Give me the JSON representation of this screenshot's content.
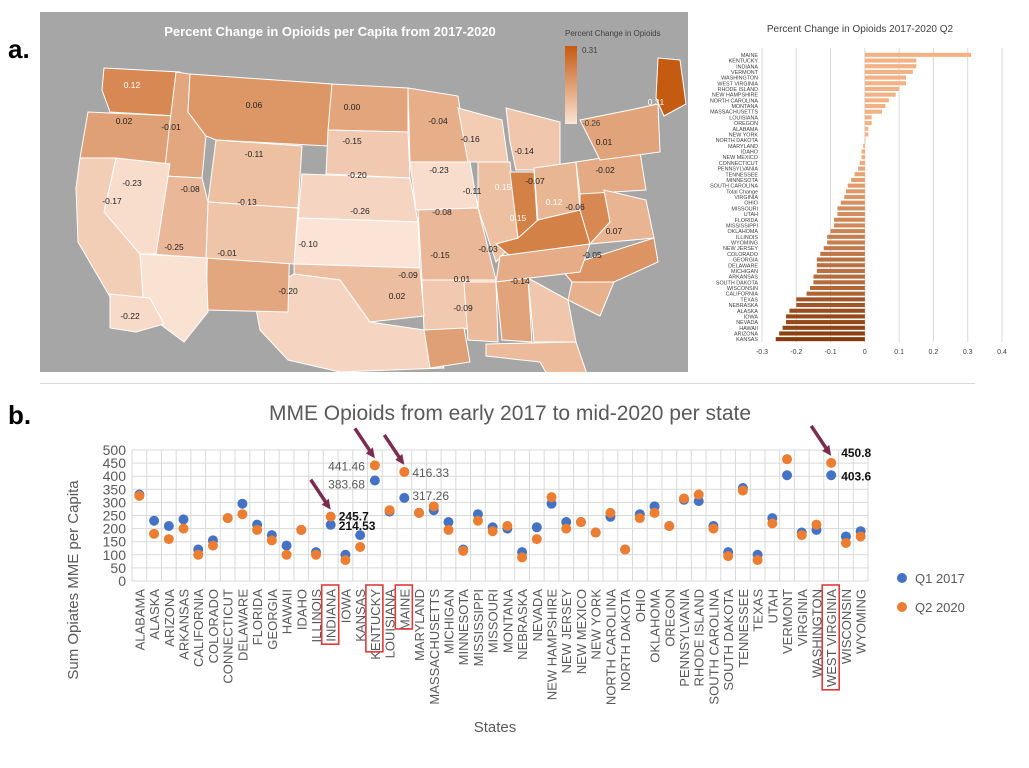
{
  "panel_labels": {
    "a": "a.",
    "b": "b."
  },
  "colors": {
    "map_bg": "#a6a6a6",
    "low": "#fbe4d6",
    "high": "#c55a11",
    "bar_positive": "#f4b183",
    "bar_negative": "#8a3a0a",
    "q1": "#4472c4",
    "q2": "#ed7d31",
    "arrow": "#7b2c4f",
    "highlight_box": "#e03a3a",
    "grid": "#d9d9d9"
  },
  "chart_data": [
    {
      "type": "heatmap",
      "title": "Percent Change in Opioids per Capita from 2017-2020",
      "legend": {
        "title": "Percent Change in Opioids",
        "max_label": "0.31",
        "min_label": "-0.26",
        "min": -0.26,
        "max": 0.31
      },
      "labels": [
        {
          "state": "WASHINGTON",
          "value": 0.12,
          "text": "0.12"
        },
        {
          "state": "OREGON",
          "value": 0.02,
          "text": "0.02"
        },
        {
          "state": "IDAHO",
          "value": -0.01,
          "text": "-0.01"
        },
        {
          "state": "MONTANA",
          "value": 0.06,
          "text": "0.06"
        },
        {
          "state": "NORTH DAKOTA",
          "value": 0.0,
          "text": "0.00"
        },
        {
          "state": "MINNESOTA",
          "value": -0.04,
          "text": "-0.04"
        },
        {
          "state": "WISCONSIN",
          "value": -0.16,
          "text": "-0.16"
        },
        {
          "state": "MICHIGAN",
          "value": -0.14,
          "text": "-0.14"
        },
        {
          "state": "NEW YORK",
          "value": 0.01,
          "text": "0.01"
        },
        {
          "state": "MAINE",
          "value": 0.31,
          "text": "0.31"
        },
        {
          "state": "SOUTH DAKOTA",
          "value": -0.15,
          "text": "-0.15"
        },
        {
          "state": "WYOMING",
          "value": -0.11,
          "text": "-0.11"
        },
        {
          "state": "IOWA",
          "value": -0.23,
          "text": "-0.23"
        },
        {
          "state": "NEBRASKA",
          "value": -0.2,
          "text": "-0.20"
        },
        {
          "state": "NEVADA",
          "value": -0.23,
          "text": "-0.23"
        },
        {
          "state": "UTAH",
          "value": -0.08,
          "text": "-0.08"
        },
        {
          "state": "COLORADO",
          "value": -0.13,
          "text": "-0.13"
        },
        {
          "state": "KANSAS",
          "value": -0.26,
          "text": "-0.26"
        },
        {
          "state": "MISSOURI",
          "value": -0.08,
          "text": "-0.08"
        },
        {
          "state": "ILLINOIS",
          "value": -0.11,
          "text": "-0.11"
        },
        {
          "state": "INDIANA",
          "value": 0.15,
          "text": "0.15"
        },
        {
          "state": "OHIO",
          "value": -0.07,
          "text": "-0.07"
        },
        {
          "state": "PENNSYLVANIA",
          "value": -0.02,
          "text": "-0.02"
        },
        {
          "state": "WEST VIRGINIA",
          "value": 0.12,
          "text": "0.12"
        },
        {
          "state": "KENTUCKY",
          "value": 0.15,
          "text": "0.15"
        },
        {
          "state": "VIRGINIA",
          "value": -0.06,
          "text": "-0.06"
        },
        {
          "state": "CALIFORNIA",
          "value": -0.17,
          "text": "-0.17"
        },
        {
          "state": "ARIZONA",
          "value": -0.25,
          "text": "-0.25"
        },
        {
          "state": "NEW MEXICO",
          "value": -0.01,
          "text": "-0.01"
        },
        {
          "state": "OKLAHOMA",
          "value": -0.1,
          "text": "-0.10"
        },
        {
          "state": "ARKANSAS",
          "value": -0.15,
          "text": "-0.15"
        },
        {
          "state": "TENNESSEE",
          "value": -0.03,
          "text": "-0.03"
        },
        {
          "state": "NORTH CAROLINA",
          "value": 0.07,
          "text": "0.07"
        },
        {
          "state": "SOUTH CAROLINA",
          "value": -0.05,
          "text": "-0.05"
        },
        {
          "state": "TEXAS",
          "value": -0.2,
          "text": "-0.20"
        },
        {
          "state": "LOUISIANA",
          "value": 0.02,
          "text": "0.02"
        },
        {
          "state": "MISSISSIPPI",
          "value": -0.09,
          "text": "-0.09"
        },
        {
          "state": "ALABAMA",
          "value": 0.01,
          "text": "0.01"
        },
        {
          "state": "GEORGIA",
          "value": -0.14,
          "text": "-0.14"
        },
        {
          "state": "FLORIDA",
          "value": -0.09,
          "text": "-0.09"
        },
        {
          "state": "ALASKA",
          "value": -0.22,
          "text": "-0.22"
        }
      ]
    },
    {
      "type": "bar",
      "orientation": "horizontal",
      "title": "Percent Change in Opioids 2017-2020 Q2",
      "categories": [
        "MAINE",
        "KENTUCKY",
        "INDIANA",
        "VERMONT",
        "WASHINGTON",
        "WEST VIRGINIA",
        "RHODE ISLAND",
        "NEW HAMPSHIRE",
        "NORTH CAROLINA",
        "MONTANA",
        "MASSACHUSETTS",
        "LOUISIANA",
        "OREGON",
        "ALABAMA",
        "NEW YORK",
        "NORTH DAKOTA",
        "MARYLAND",
        "IDAHO",
        "NEW MEXICO",
        "CONNECTICUT",
        "PENNSYLVANIA",
        "TENNESSEE",
        "MINNESOTA",
        "SOUTH CAROLINA",
        "Total Change",
        "VIRGINIA",
        "OHIO",
        "MISSOURI",
        "UTAH",
        "FLORIDA",
        "MISSISSIPPI",
        "OKLAHOMA",
        "ILLINOIS",
        "WYOMING",
        "NEW JERSEY",
        "COLORADO",
        "GEORGIA",
        "DELAWARE",
        "MICHIGAN",
        "ARKANSAS",
        "SOUTH DAKOTA",
        "WISCONSIN",
        "CALIFORNIA",
        "TEXAS",
        "NEBRASKA",
        "ALASKA",
        "IOWA",
        "NEVADA",
        "HAWAII",
        "ARIZONA",
        "KANSAS"
      ],
      "values": [
        0.31,
        0.15,
        0.15,
        0.14,
        0.12,
        0.12,
        0.1,
        0.09,
        0.07,
        0.06,
        0.05,
        0.02,
        0.02,
        0.01,
        0.01,
        0.0,
        -0.005,
        -0.01,
        -0.01,
        -0.015,
        -0.02,
        -0.03,
        -0.04,
        -0.05,
        -0.055,
        -0.06,
        -0.07,
        -0.08,
        -0.08,
        -0.09,
        -0.09,
        -0.1,
        -0.11,
        -0.11,
        -0.12,
        -0.13,
        -0.14,
        -0.14,
        -0.14,
        -0.15,
        -0.15,
        -0.16,
        -0.17,
        -0.2,
        -0.2,
        -0.22,
        -0.23,
        -0.23,
        -0.24,
        -0.25,
        -0.26
      ],
      "xlim": [
        -0.3,
        0.4
      ],
      "xticks": [
        "-0.3",
        "-0.2",
        "-0.1",
        "0",
        "0.1",
        "0.2",
        "0.3",
        "0.4"
      ]
    },
    {
      "type": "scatter",
      "title": "MME Opioids from early 2017 to mid-2020 per state",
      "xlabel": "States",
      "ylabel": "Sum Opiates MME per Capita",
      "ylim": [
        0,
        500
      ],
      "yticks": [
        "0",
        "50",
        "100",
        "150",
        "200",
        "250",
        "300",
        "350",
        "400",
        "450",
        "500"
      ],
      "categories": [
        "ALABAMA",
        "ALASKA",
        "ARIZONA",
        "ARKANSAS",
        "CALIFORNIA",
        "COLORADO",
        "CONNECTICUT",
        "DELAWARE",
        "FLORIDA",
        "GEORGIA",
        "HAWAII",
        "IDAHO",
        "ILLINOIS",
        "INDIANA",
        "IOWA",
        "KANSAS",
        "KENTUCKY",
        "LOUISIANA",
        "MAINE",
        "MARYLAND",
        "MASSACHUSETTS",
        "MICHIGAN",
        "MINNESOTA",
        "MISSISSIPPI",
        "MISSOURI",
        "MONTANA",
        "NEBRASKA",
        "NEVADA",
        "NEW HAMPSHIRE",
        "NEW JERSEY",
        "NEW MEXICO",
        "NEW YORK",
        "NORTH CAROLINA",
        "NORTH DAKOTA",
        "OHIO",
        "OKLAHOMA",
        "OREGON",
        "PENNSYLVANIA",
        "RHODE ISLAND",
        "SOUTH CAROLINA",
        "SOUTH DAKOTA",
        "TENNESSEE",
        "TEXAS",
        "UTAH",
        "VERMONT",
        "VIRGINIA",
        "WASHINGTON",
        "WEST VIRGINIA",
        "WISCONSIN",
        "WYOMING"
      ],
      "series": [
        {
          "name": "Q1 2017",
          "values": [
            330,
            230,
            210,
            235,
            120,
            155,
            240,
            295,
            215,
            175,
            135,
            195,
            110,
            214.53,
            100,
            175,
            383.68,
            265,
            317.26,
            260,
            270,
            225,
            120,
            255,
            205,
            200,
            110,
            205,
            295,
            225,
            225,
            185,
            245,
            120,
            255,
            285,
            210,
            310,
            305,
            210,
            110,
            355,
            100,
            240,
            403.6,
            185,
            195,
            403.6,
            170,
            190
          ]
        },
        {
          "name": "Q2 2020",
          "values": [
            325,
            180,
            160,
            200,
            100,
            135,
            240,
            255,
            195,
            155,
            100,
            195,
            100,
            245.7,
            80,
            130,
            441.46,
            270,
            416.33,
            260,
            285,
            195,
            115,
            230,
            190,
            210,
            90,
            160,
            320,
            200,
            225,
            185,
            260,
            120,
            240,
            260,
            210,
            315,
            330,
            200,
            95,
            345,
            80,
            220,
            465,
            175,
            215,
            450.8,
            145,
            170
          ]
        }
      ],
      "highlighted_states": [
        "INDIANA",
        "KENTUCKY",
        "MAINE",
        "WEST VIRGINIA"
      ],
      "annotations": [
        "441.46",
        "416.33",
        "383.68",
        "317.26",
        "245.7",
        "214.53",
        "450.8",
        "403.6"
      ]
    }
  ]
}
